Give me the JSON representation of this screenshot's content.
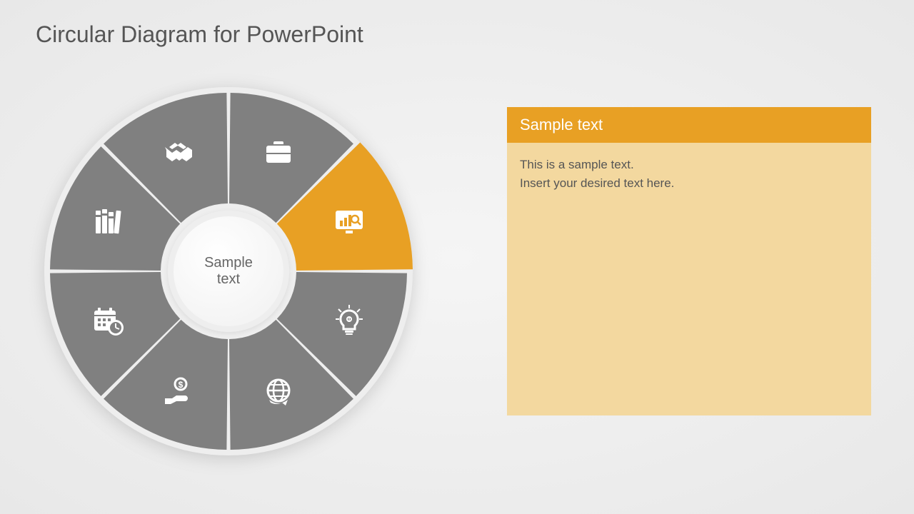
{
  "title": "Circular Diagram for PowerPoint",
  "center_text": "Sample\ntext",
  "wheel": {
    "type": "circular-segments",
    "outer_radius": 250,
    "inner_radius": 95,
    "ring_bg": "#eeeeee",
    "gap_deg": 1.2,
    "segment_count": 8,
    "default_color": "#808080",
    "highlight_color": "#e8a024",
    "icon_color": "#ffffff",
    "highlight_index": 2,
    "segments": [
      {
        "icon": "handshake",
        "angle_center": -112.5
      },
      {
        "icon": "briefcase",
        "angle_center": -67.5
      },
      {
        "icon": "analytics",
        "angle_center": -22.5
      },
      {
        "icon": "lightbulb",
        "angle_center": 22.5
      },
      {
        "icon": "globe",
        "angle_center": 67.5
      },
      {
        "icon": "money-hand",
        "angle_center": 112.5
      },
      {
        "icon": "calendar-clock",
        "angle_center": 157.5
      },
      {
        "icon": "books",
        "angle_center": -157.5
      }
    ]
  },
  "panel": {
    "header_text": "Sample text",
    "header_bg": "#e8a024",
    "body_bg": "#f3d89f",
    "body_line1": "This is a sample text.",
    "body_line2": "Insert your desired text here."
  }
}
